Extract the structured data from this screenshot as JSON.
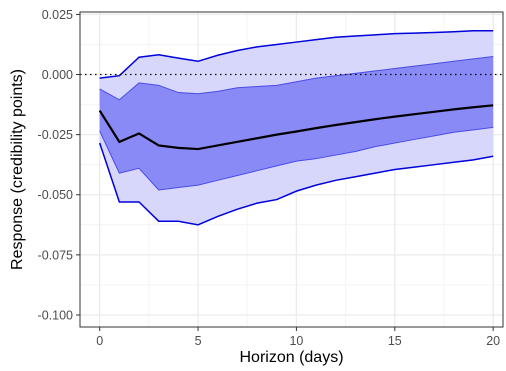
{
  "chart_data": {
    "type": "line",
    "xlabel": "Horizon (days)",
    "ylabel": "Response (credibility points)",
    "xlim": [
      -1,
      20.5
    ],
    "ylim": [
      -0.105,
      0.026
    ],
    "x_ticks": [
      0,
      5,
      10,
      15,
      20
    ],
    "y_ticks": [
      0.025,
      0.0,
      -0.025,
      -0.05,
      -0.075,
      -0.1
    ],
    "y_tick_labels": [
      "0.025",
      "0.000",
      "-0.025",
      "-0.050",
      "-0.075",
      "-0.100"
    ],
    "grid": true,
    "reference_line": {
      "y": 0.0,
      "style": "dotted"
    },
    "x": [
      0,
      1,
      2,
      3,
      4,
      5,
      6,
      7,
      8,
      9,
      10,
      11,
      12,
      13,
      14,
      15,
      16,
      17,
      18,
      19,
      20
    ],
    "median": [
      -0.015,
      -0.028,
      -0.0245,
      -0.0295,
      -0.0305,
      -0.031,
      -0.0295,
      -0.028,
      -0.0265,
      -0.025,
      -0.0237,
      -0.0223,
      -0.021,
      -0.0198,
      -0.0186,
      -0.0175,
      -0.0165,
      -0.0155,
      -0.0145,
      -0.0136,
      -0.0128
    ],
    "inner_band": {
      "upper": [
        -0.006,
        -0.0105,
        -0.0035,
        -0.0045,
        -0.0075,
        -0.008,
        -0.007,
        -0.0055,
        -0.005,
        -0.0045,
        -0.003,
        -0.0015,
        -0.0005,
        0.0005,
        0.0015,
        0.0025,
        0.0035,
        0.0045,
        0.0055,
        0.0065,
        0.0075
      ],
      "lower": [
        -0.0235,
        -0.041,
        -0.039,
        -0.048,
        -0.047,
        -0.046,
        -0.044,
        -0.042,
        -0.04,
        -0.038,
        -0.036,
        -0.035,
        -0.0335,
        -0.032,
        -0.03,
        -0.0285,
        -0.027,
        -0.0255,
        -0.024,
        -0.023,
        -0.022
      ]
    },
    "outer_band": {
      "upper": [
        -0.0015,
        -0.0005,
        0.0072,
        0.0082,
        0.0068,
        0.0055,
        0.008,
        0.01,
        0.0115,
        0.0125,
        0.0135,
        0.0145,
        0.0155,
        0.016,
        0.0165,
        0.017,
        0.0172,
        0.0175,
        0.0178,
        0.0182,
        0.0182
      ],
      "lower": [
        -0.0285,
        -0.053,
        -0.053,
        -0.061,
        -0.061,
        -0.0625,
        -0.059,
        -0.056,
        -0.0535,
        -0.052,
        -0.0485,
        -0.046,
        -0.044,
        -0.0425,
        -0.041,
        -0.0395,
        -0.0385,
        -0.0375,
        -0.0365,
        -0.0355,
        -0.034
      ]
    },
    "colors": {
      "outer_fill": "#d7d7fb",
      "inner_fill": "#8a8af6",
      "band_line": "#0000dd",
      "median_line": "#000000",
      "grid_major": "#ebebeb",
      "grid_minor": "#f4f4f4"
    }
  }
}
